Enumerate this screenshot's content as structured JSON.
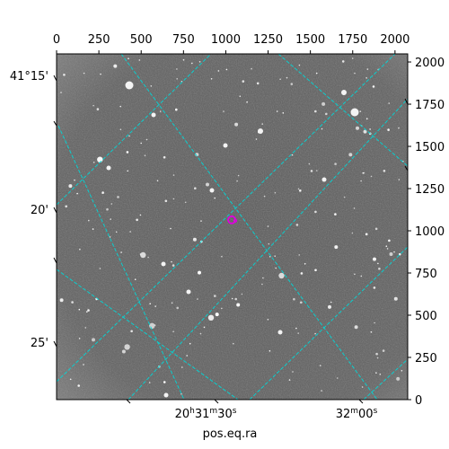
{
  "chart_data": {
    "type": "image",
    "xlabel": "pos.eq.ra",
    "pixel_axis_top": {
      "ticks": [
        0,
        250,
        500,
        750,
        1000,
        1250,
        1500,
        1750,
        2000
      ],
      "range": [
        0,
        2075
      ]
    },
    "pixel_axis_right": {
      "ticks": [
        0,
        250,
        500,
        750,
        1000,
        1250,
        1500,
        1750,
        2000
      ],
      "range": [
        0,
        2048
      ]
    },
    "ra_tick_labels": [
      {
        "h": "20",
        "m": "31",
        "s": "30"
      },
      {
        "h": "",
        "m": "32",
        "s": "00"
      }
    ],
    "dec_tick_labels": [
      "41°15'",
      "20'",
      "25'"
    ],
    "grid_color": "#00d8d8",
    "marker_color": "#e000e0",
    "image_tone": "grayscale star field",
    "target_marker": {
      "x": 1035,
      "y": 1065
    }
  }
}
